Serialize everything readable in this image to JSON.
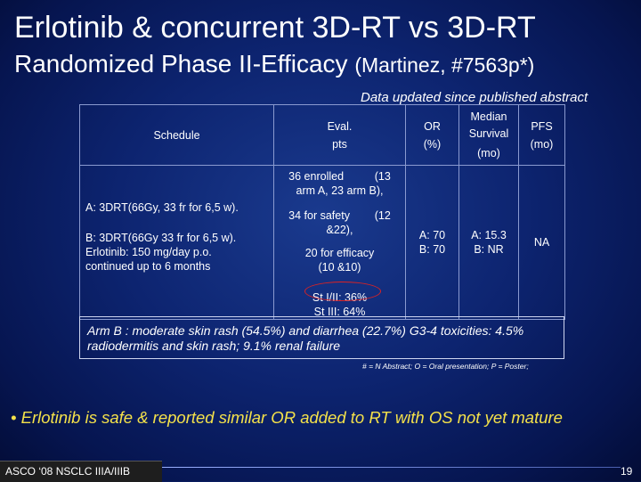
{
  "title_line1": "Erlotinib & concurrent 3D-RT vs 3D-RT",
  "title_line2": "Randomized  Phase II-Efficacy",
  "title_line2_ref": "(Martinez, #7563p*)",
  "updated_note": "Data updated since published abstract",
  "table": {
    "headers": {
      "schedule": "Schedule",
      "eval_line1": "Eval.",
      "eval_line2": "pts",
      "or_line1": "OR",
      "or_line2": "(%)",
      "median_line1": "Median",
      "median_line2": "Survival",
      "median_line3": "(mo)",
      "pfs_line1": "PFS",
      "pfs_line2": "(mo)"
    },
    "schedule_a": "A: 3DRT(66Gy, 33 fr for 6,5 w).",
    "schedule_b_line1": "B: 3DRT(66Gy 33 fr for 6,5 w).",
    "schedule_b_line2": "Erlotinib: 150 mg/day p.o.",
    "schedule_b_line3": "continued up to 6 months",
    "eval_1a": "36 enrolled          (13",
    "eval_1b": "arm A, 23 arm B),",
    "eval_2a": "34 for safety        (12",
    "eval_2b": "&22),",
    "eval_3a": "20 for efficacy",
    "eval_3b": "(10 &10)",
    "eval_4a": "St I/II: 36%",
    "eval_4b": "St III: 64%",
    "or_a": "A: 70",
    "or_b": "B: 70",
    "median_a": "A: 15.3",
    "median_b": "B: NR",
    "pfs": "NA"
  },
  "note_text": "Arm B : moderate skin rash (54.5%) and diarrhea (22.7%) G3-4 toxicities: 4.5% radiodermitis and skin rash; 9.1% renal failure",
  "footnote": "# = N Abstract; O = Oral presentation; P = Poster;",
  "bullet": "• Erlotinib  is safe & reported similar OR added to RT with OS not yet mature",
  "footer_label": "ASCO ‘08 NSCLC IIIA/IIIB",
  "page_number": "19",
  "colors": {
    "highlight": "#f4e14a",
    "circle": "#dd2222"
  }
}
